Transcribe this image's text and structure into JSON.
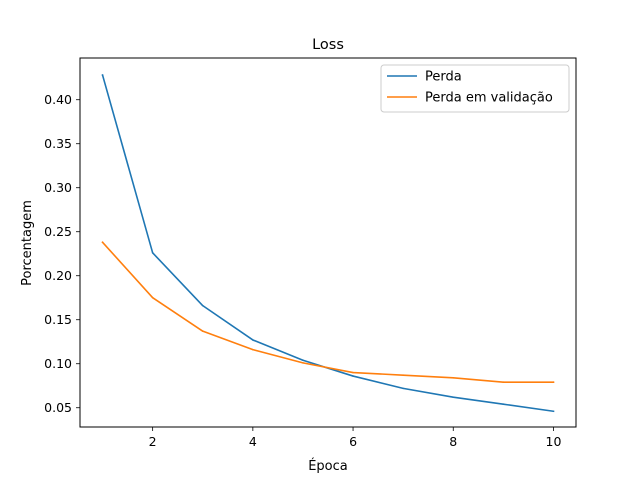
{
  "chart_data": {
    "type": "line",
    "title": "Loss",
    "xlabel": "Época",
    "ylabel": "Porcentagem",
    "xlim": [
      0.55,
      10.45
    ],
    "ylim": [
      0.0281,
      0.4474
    ],
    "x_ticks": [
      2,
      4,
      6,
      8,
      10
    ],
    "y_ticks": [
      0.05,
      0.1,
      0.15,
      0.2,
      0.25,
      0.3,
      0.35,
      0.4
    ],
    "x_tick_labels": [
      "2",
      "4",
      "6",
      "8",
      "10"
    ],
    "y_tick_labels": [
      "0.05",
      "0.10",
      "0.15",
      "0.20",
      "0.25",
      "0.30",
      "0.35",
      "0.40"
    ],
    "x": [
      1,
      2,
      3,
      4,
      5,
      6,
      7,
      8,
      9,
      10
    ],
    "series": [
      {
        "name": "Perda",
        "color": "#1f77b4",
        "values": [
          0.428,
          0.226,
          0.166,
          0.127,
          0.104,
          0.086,
          0.072,
          0.062,
          0.054,
          0.046
        ]
      },
      {
        "name": "Perda em validação",
        "color": "#ff7f0e",
        "values": [
          0.238,
          0.175,
          0.137,
          0.116,
          0.101,
          0.09,
          0.087,
          0.084,
          0.079,
          0.079
        ]
      }
    ],
    "grid": false,
    "legend_position": "top-right"
  }
}
